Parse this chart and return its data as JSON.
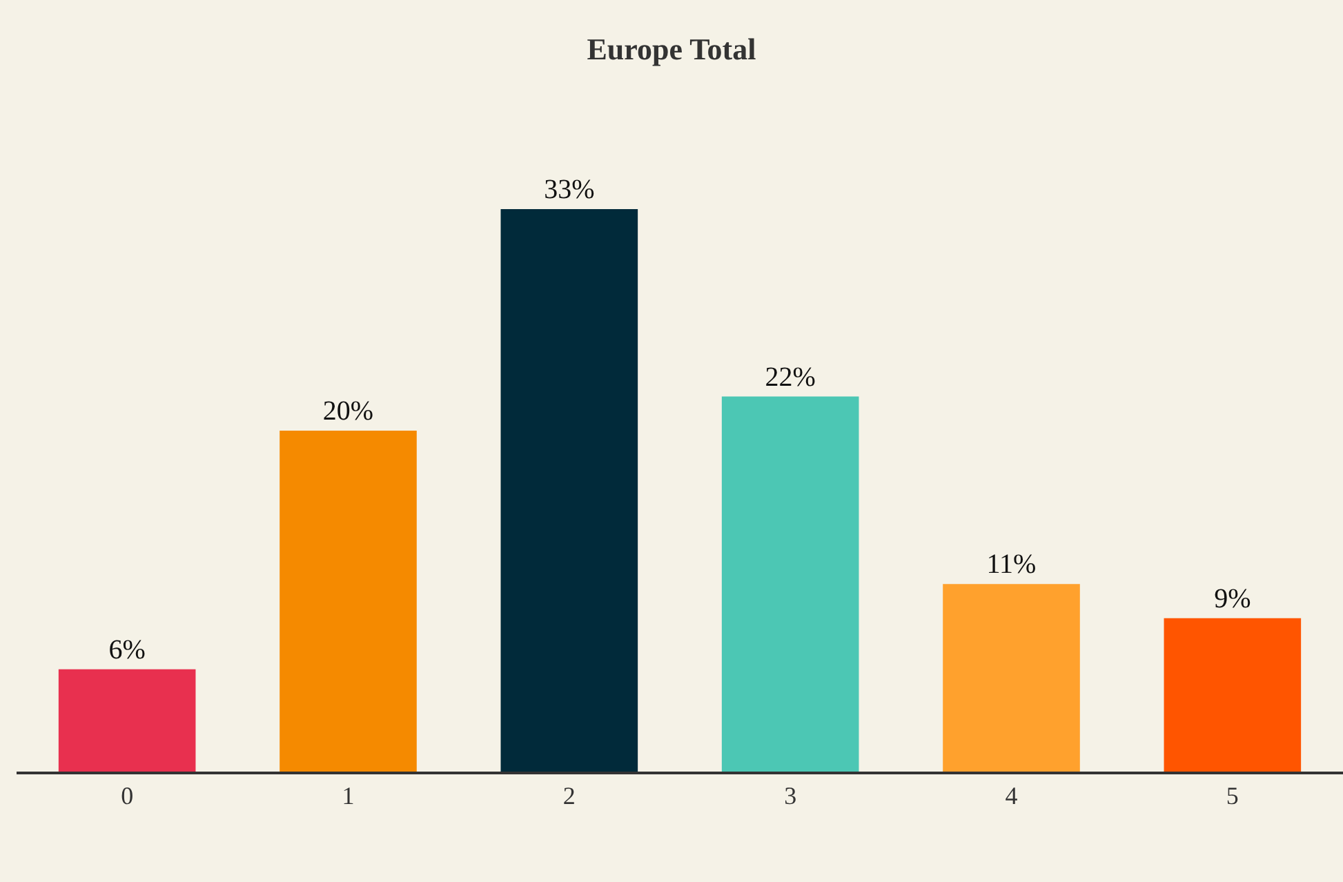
{
  "chart_data": {
    "type": "bar",
    "title": "Europe Total",
    "categories": [
      "0",
      "1",
      "2",
      "3",
      "4",
      "5"
    ],
    "values": [
      6,
      20,
      33,
      22,
      11,
      9
    ],
    "colors": [
      "#e8304f",
      "#f58a00",
      "#012a3a",
      "#4cc7b4",
      "#ffa12d",
      "#ff5500"
    ],
    "value_labels": [
      "6%",
      "20%",
      "33%",
      "22%",
      "11%",
      "9%"
    ],
    "grid": false,
    "legend": false
  }
}
